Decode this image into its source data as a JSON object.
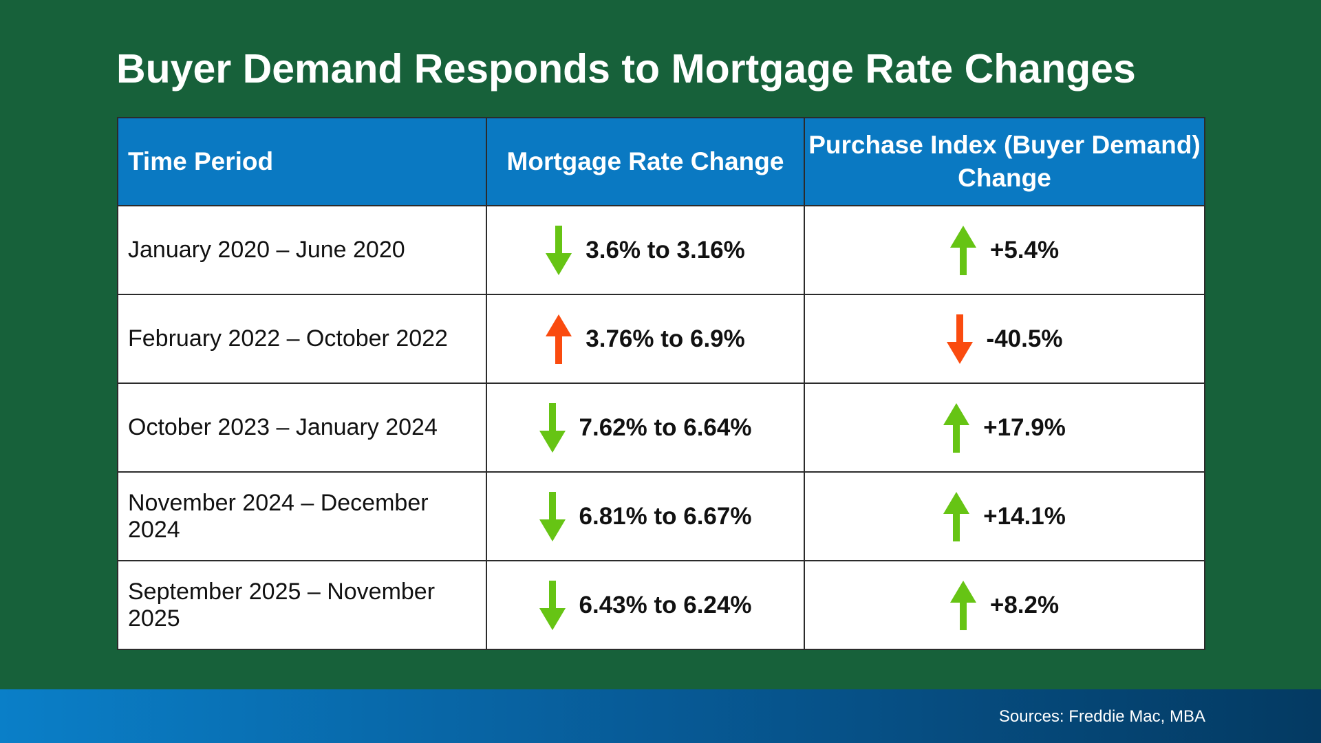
{
  "title": "Buyer Demand Responds to Mortgage Rate Changes",
  "table": {
    "headers": [
      "Time Period",
      "Mortgage Rate Change",
      "Purchase Index (Buyer Demand) Change"
    ],
    "rows": [
      {
        "period": "January 2020 – June 2020",
        "rate": "3.6% to 3.16%",
        "rate_dir": "down",
        "demand": "+5.4%",
        "demand_dir": "up"
      },
      {
        "period": "February 2022 – October 2022",
        "rate": "3.76% to 6.9%",
        "rate_dir": "up",
        "demand": "-40.5%",
        "demand_dir": "down"
      },
      {
        "period": "October 2023 – January 2024",
        "rate": "7.62% to 6.64%",
        "rate_dir": "down",
        "demand": "+17.9%",
        "demand_dir": "up"
      },
      {
        "period": "November 2024 – December 2024",
        "rate": "6.81% to 6.67%",
        "rate_dir": "down",
        "demand": "+14.1%",
        "demand_dir": "up"
      },
      {
        "period": "September 2025 – November 2025",
        "rate": "6.43% to 6.24%",
        "rate_dir": "down",
        "demand": "+8.2%",
        "demand_dir": "up"
      }
    ]
  },
  "colors": {
    "green_arrow": "#66c414",
    "red_arrow": "#fa4b0f",
    "background": "#17613a",
    "header": "#0a79c2"
  },
  "source": "Sources: Freddie Mac, MBA"
}
